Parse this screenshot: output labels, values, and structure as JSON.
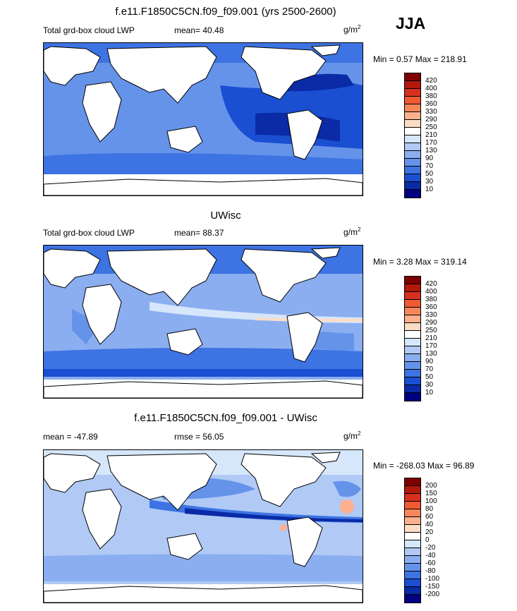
{
  "season": "JJA",
  "unit": "g/m",
  "unit_sup": "2",
  "panels": [
    {
      "title": "f.e11.F1850C5CN.f09_f09.001 (yrs 2500-2600)",
      "left_label": "Total grd-box cloud LWP",
      "center_label": "mean=  40.48",
      "minmax": "Min =   0.57 Max = 218.91",
      "colorbar_ticks": [
        "420",
        "400",
        "380",
        "360",
        "330",
        "290",
        "250",
        "210",
        "170",
        "130",
        "90",
        "70",
        "50",
        "30",
        "10"
      ]
    },
    {
      "title": "UWisc",
      "left_label": "Total grd-box cloud LWP",
      "center_label": "mean=  88.37",
      "minmax": "Min =   3.28 Max = 319.14",
      "colorbar_ticks": [
        "420",
        "400",
        "380",
        "360",
        "330",
        "290",
        "250",
        "210",
        "170",
        "130",
        "90",
        "70",
        "50",
        "30",
        "10"
      ]
    },
    {
      "title": "f.e11.F1850C5CN.f09_f09.001 - UWisc",
      "left_label": "mean = -47.89",
      "center_label": "rmse =  56.05",
      "minmax": "Min = -268.03 Max =  96.89",
      "colorbar_ticks": [
        "200",
        "150",
        "100",
        "80",
        "60",
        "40",
        "20",
        "0",
        "-20",
        "-40",
        "-60",
        "-80",
        "-100",
        "-150",
        "-200"
      ]
    }
  ],
  "colors": {
    "abs_scale": [
      "#7f0000",
      "#b2180c",
      "#d7301f",
      "#ef5a34",
      "#f7875a",
      "#fcb08e",
      "#fddcc6",
      "#ffffff",
      "#d6e6fb",
      "#b0c9f5",
      "#8aaef0",
      "#6593ea",
      "#3d73e2",
      "#1b4fd2",
      "#0a2aa6",
      "#000080"
    ],
    "diff_scale": [
      "#7f0000",
      "#b2180c",
      "#d7301f",
      "#ef5a34",
      "#f7875a",
      "#fcb08e",
      "#fddcc6",
      "#ffffff",
      "#d6e6fb",
      "#b0c9f5",
      "#8aaef0",
      "#6593ea",
      "#3d73e2",
      "#1b4fd2",
      "#0a2aa6",
      "#000080"
    ],
    "land": "#ffffff"
  },
  "chart_data": [
    {
      "type": "heatmap",
      "title": "f.e11.F1850C5CN.f09_f09.001 (yrs 2500-2600)",
      "field": "Total grd-box cloud LWP",
      "units": "g/m2",
      "mean": 40.48,
      "min": 0.57,
      "max": 218.91,
      "contour_levels": [
        10,
        30,
        50,
        70,
        90,
        130,
        170,
        210,
        250,
        290,
        330,
        360,
        380,
        400,
        420
      ]
    },
    {
      "type": "heatmap",
      "title": "UWisc",
      "field": "Total grd-box cloud LWP",
      "units": "g/m2",
      "mean": 88.37,
      "min": 3.28,
      "max": 319.14,
      "contour_levels": [
        10,
        30,
        50,
        70,
        90,
        130,
        170,
        210,
        250,
        290,
        330,
        360,
        380,
        400,
        420
      ]
    },
    {
      "type": "heatmap",
      "title": "f.e11.F1850C5CN.f09_f09.001 - UWisc",
      "units": "g/m2",
      "mean": -47.89,
      "rmse": 56.05,
      "min": -268.03,
      "max": 96.89,
      "contour_levels": [
        -200,
        -150,
        -100,
        -80,
        -60,
        -40,
        -20,
        0,
        20,
        40,
        60,
        80,
        100,
        150,
        200
      ]
    }
  ]
}
